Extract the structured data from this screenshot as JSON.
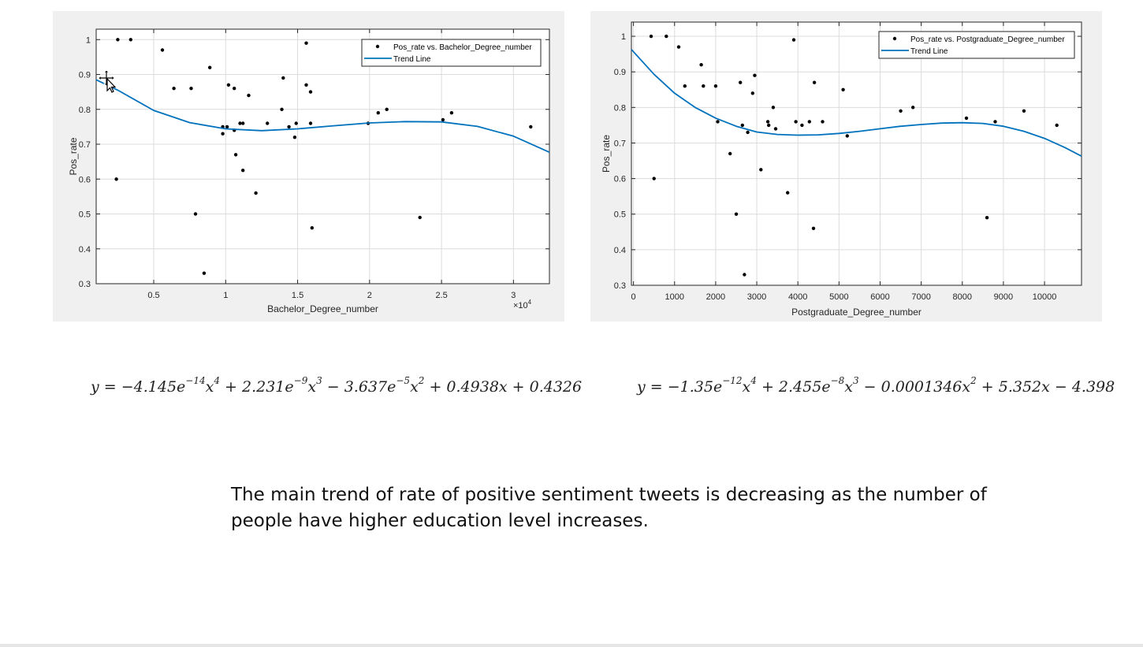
{
  "chart_data": [
    {
      "type": "scatter",
      "xlabel": "Bachelor_Degree_number",
      "ylabel": "Pos_rate",
      "x_exponent_label": "×10",
      "x_exponent": "4",
      "xlim": [
        1000,
        32500
      ],
      "ylim": [
        0.3,
        1.03
      ],
      "xticks": [
        5000,
        10000,
        15000,
        20000,
        25000,
        30000
      ],
      "xtick_labels": [
        "0.5",
        "1",
        "1.5",
        "2",
        "2.5",
        "3"
      ],
      "yticks": [
        0.3,
        0.4,
        0.5,
        0.6,
        0.7,
        0.8,
        0.9,
        1
      ],
      "ytick_labels": [
        "0.3",
        "0.4",
        "0.5",
        "0.6",
        "0.7",
        "0.8",
        "0.9",
        "1"
      ],
      "grid": true,
      "legend_position": "top-right",
      "series": [
        {
          "name": "Pos_rate vs. Bachelor_Degree_number",
          "kind": "points",
          "color": "#000000",
          "points": [
            [
              2500,
              1.0
            ],
            [
              3400,
              1.0
            ],
            [
              5600,
              0.97
            ],
            [
              6400,
              0.86
            ],
            [
              7600,
              0.86
            ],
            [
              8900,
              0.92
            ],
            [
              2400,
              0.6
            ],
            [
              7900,
              0.5
            ],
            [
              8500,
              0.33
            ],
            [
              9800,
              0.75
            ],
            [
              9800,
              0.73
            ],
            [
              10100,
              0.75
            ],
            [
              10200,
              0.87
            ],
            [
              10600,
              0.86
            ],
            [
              10600,
              0.74
            ],
            [
              10700,
              0.67
            ],
            [
              11000,
              0.76
            ],
            [
              11200,
              0.76
            ],
            [
              11200,
              0.625
            ],
            [
              11600,
              0.84
            ],
            [
              12100,
              0.56
            ],
            [
              12900,
              0.76
            ],
            [
              13900,
              0.8
            ],
            [
              14000,
              0.89
            ],
            [
              14400,
              0.75
            ],
            [
              14800,
              0.72
            ],
            [
              14900,
              0.76
            ],
            [
              15600,
              0.99
            ],
            [
              15600,
              0.87
            ],
            [
              15900,
              0.85
            ],
            [
              15900,
              0.76
            ],
            [
              16000,
              0.46
            ],
            [
              19900,
              0.76
            ],
            [
              20600,
              0.79
            ],
            [
              21200,
              0.8
            ],
            [
              23500,
              0.49
            ],
            [
              25100,
              0.77
            ],
            [
              25700,
              0.79
            ],
            [
              31200,
              0.75
            ]
          ]
        },
        {
          "name": "Trend Line",
          "kind": "line",
          "color": "#0072bd",
          "points": [
            [
              1000,
              0.885
            ],
            [
              2500,
              0.855
            ],
            [
              5000,
              0.797
            ],
            [
              7500,
              0.762
            ],
            [
              10000,
              0.744
            ],
            [
              12500,
              0.739
            ],
            [
              15000,
              0.744
            ],
            [
              17500,
              0.753
            ],
            [
              20000,
              0.761
            ],
            [
              22500,
              0.765
            ],
            [
              25000,
              0.764
            ],
            [
              27500,
              0.751
            ],
            [
              30000,
              0.723
            ],
            [
              32500,
              0.677
            ]
          ]
        }
      ]
    },
    {
      "type": "scatter",
      "xlabel": "Postgraduate_Degree_number",
      "ylabel": "Pos_rate",
      "xlim": [
        -50,
        10900
      ],
      "ylim": [
        0.3,
        1.04
      ],
      "xticks": [
        0,
        1000,
        2000,
        3000,
        4000,
        5000,
        6000,
        7000,
        8000,
        9000,
        10000
      ],
      "xtick_labels": [
        "0",
        "1000",
        "2000",
        "3000",
        "4000",
        "5000",
        "6000",
        "7000",
        "8000",
        "9000",
        "10000"
      ],
      "yticks": [
        0.3,
        0.4,
        0.5,
        0.6,
        0.7,
        0.8,
        0.9,
        1
      ],
      "ytick_labels": [
        "0.3",
        "0.4",
        "0.5",
        "0.6",
        "0.7",
        "0.8",
        "0.9",
        "1"
      ],
      "grid": true,
      "legend_position": "top-right",
      "series": [
        {
          "name": "Pos_rate vs. Postgraduate_Degree_number",
          "kind": "points",
          "color": "#000000",
          "points": [
            [
              430,
              1.0
            ],
            [
              800,
              1.0
            ],
            [
              500,
              0.6
            ],
            [
              1100,
              0.97
            ],
            [
              1250,
              0.86
            ],
            [
              1650,
              0.92
            ],
            [
              1700,
              0.86
            ],
            [
              2000,
              0.86
            ],
            [
              2050,
              0.76
            ],
            [
              2350,
              0.67
            ],
            [
              2500,
              0.5
            ],
            [
              2600,
              0.87
            ],
            [
              2650,
              0.75
            ],
            [
              2700,
              0.33
            ],
            [
              2780,
              0.73
            ],
            [
              2900,
              0.84
            ],
            [
              2950,
              0.89
            ],
            [
              3100,
              0.625
            ],
            [
              3270,
              0.76
            ],
            [
              3290,
              0.75
            ],
            [
              3400,
              0.8
            ],
            [
              3460,
              0.74
            ],
            [
              3750,
              0.56
            ],
            [
              3900,
              0.99
            ],
            [
              3950,
              0.76
            ],
            [
              4100,
              0.75
            ],
            [
              4280,
              0.76
            ],
            [
              4380,
              0.46
            ],
            [
              4400,
              0.87
            ],
            [
              4600,
              0.76
            ],
            [
              5100,
              0.85
            ],
            [
              5200,
              0.72
            ],
            [
              6500,
              0.79
            ],
            [
              6800,
              0.8
            ],
            [
              8100,
              0.77
            ],
            [
              8600,
              0.49
            ],
            [
              8800,
              0.76
            ],
            [
              9500,
              0.79
            ],
            [
              10300,
              0.75
            ]
          ]
        },
        {
          "name": "Trend Line",
          "kind": "line",
          "color": "#0072bd",
          "points": [
            [
              -50,
              0.963
            ],
            [
              500,
              0.893
            ],
            [
              1000,
              0.84
            ],
            [
              1500,
              0.8
            ],
            [
              2000,
              0.77
            ],
            [
              2500,
              0.747
            ],
            [
              3000,
              0.731
            ],
            [
              3500,
              0.724
            ],
            [
              4000,
              0.722
            ],
            [
              4500,
              0.723
            ],
            [
              5000,
              0.727
            ],
            [
              5500,
              0.733
            ],
            [
              6000,
              0.74
            ],
            [
              6500,
              0.747
            ],
            [
              7000,
              0.752
            ],
            [
              7500,
              0.756
            ],
            [
              8000,
              0.757
            ],
            [
              8500,
              0.755
            ],
            [
              9000,
              0.747
            ],
            [
              9500,
              0.733
            ],
            [
              10000,
              0.713
            ],
            [
              10500,
              0.687
            ],
            [
              10900,
              0.663
            ]
          ]
        }
      ]
    }
  ],
  "equations": {
    "left": {
      "lhs": "y = −4.145",
      "e1": "e",
      "p1": "−14",
      "x4": "x",
      "p4": "4",
      "t2": " + 2.231",
      "e2": "e",
      "p2": "−9",
      "x3": "x",
      "p3": "3",
      "t3": " − 3.637",
      "e3": "e",
      "p5": "−5",
      "x2": "x",
      "p6": "2",
      "t4": " + 0.4938x + 0.4326"
    },
    "right": {
      "lhs": "y = −1.35",
      "e1": "e",
      "p1": "−12",
      "x4": "x",
      "p4": "4",
      "t2": " + 2.455",
      "e2": "e",
      "p2": "−8",
      "x3": "x",
      "p3": "3",
      "t3": " − 0.0001346",
      "x2": "x",
      "p6": "2",
      "t4": " + 5.352x − 4.398"
    }
  },
  "conclusion": "The main trend of rate of positive sentiment tweets is decreasing as the number of people have higher education level increases."
}
